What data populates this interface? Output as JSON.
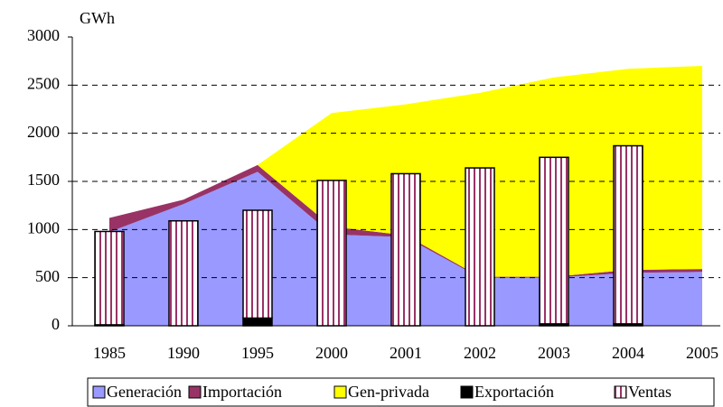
{
  "chart_data": {
    "type": "combo",
    "y_label": "GWh",
    "categories": [
      "1985",
      "1990",
      "1995",
      "2000",
      "2001",
      "2002",
      "2003",
      "2004",
      "2005"
    ],
    "ylim": [
      0,
      3000
    ],
    "yticks": [
      0,
      500,
      1000,
      1500,
      2000,
      2500,
      3000
    ],
    "grid": true,
    "series": [
      {
        "name": "Generación",
        "mark": "area",
        "color": "#9999ff",
        "values": [
          975,
          1265,
          1600,
          950,
          920,
          500,
          500,
          550,
          560
        ]
      },
      {
        "name": "Importación",
        "mark": "area",
        "color": "#993366",
        "values": [
          145,
          45,
          70,
          80,
          20,
          10,
          10,
          30,
          30
        ]
      },
      {
        "name": "Gen-privada",
        "mark": "area",
        "color": "#ffff00",
        "values": [
          0,
          0,
          0,
          1180,
          1360,
          1910,
          2070,
          2090,
          2110
        ]
      },
      {
        "name": "Exportación",
        "mark": "bar",
        "color": "#000000",
        "values": [
          10,
          0,
          80,
          0,
          0,
          0,
          20,
          20,
          0
        ]
      },
      {
        "name": "Ventas",
        "mark": "bar",
        "color": "#993366",
        "values": [
          970,
          1090,
          1120,
          1510,
          1580,
          1640,
          1730,
          1850,
          null
        ]
      }
    ]
  }
}
